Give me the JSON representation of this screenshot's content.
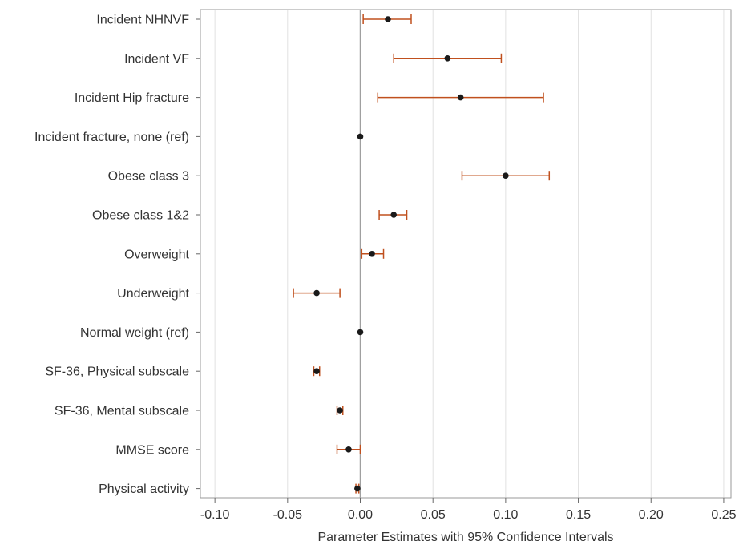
{
  "chart_data": {
    "type": "forest",
    "title": "",
    "xlabel": "Parameter Estimates with 95% Confidence Intervals",
    "ylabel": "",
    "xlim": [
      -0.11,
      0.255
    ],
    "xticks": [
      -0.1,
      -0.05,
      0.0,
      0.05,
      0.1,
      0.15,
      0.2,
      0.25
    ],
    "xtick_labels": [
      "-0.10",
      "-0.05",
      "0.00",
      "0.05",
      "0.10",
      "0.15",
      "0.20",
      "0.25"
    ],
    "reference_line": 0,
    "grid": true,
    "colors": {
      "ci": "#c0501e",
      "point": "#1a1a1a",
      "grid": "#e1e1e1",
      "axis": "#9a9a9a",
      "reference": "#a0a0a0"
    },
    "rows": [
      {
        "label": "Incident NHNVF",
        "estimate": 0.019,
        "lower": 0.002,
        "upper": 0.035
      },
      {
        "label": "Incident VF",
        "estimate": 0.06,
        "lower": 0.023,
        "upper": 0.097
      },
      {
        "label": "Incident Hip fracture",
        "estimate": 0.069,
        "lower": 0.012,
        "upper": 0.126
      },
      {
        "label": "Incident fracture, none (ref)",
        "estimate": 0.0,
        "lower": null,
        "upper": null
      },
      {
        "label": "Obese class 3",
        "estimate": 0.1,
        "lower": 0.07,
        "upper": 0.13
      },
      {
        "label": "Obese class 1&2",
        "estimate": 0.023,
        "lower": 0.013,
        "upper": 0.032
      },
      {
        "label": "Overweight",
        "estimate": 0.008,
        "lower": 0.001,
        "upper": 0.016
      },
      {
        "label": "Underweight",
        "estimate": -0.03,
        "lower": -0.046,
        "upper": -0.014
      },
      {
        "label": "Normal weight (ref)",
        "estimate": 0.0,
        "lower": null,
        "upper": null
      },
      {
        "label": "SF-36, Physical subscale",
        "estimate": -0.03,
        "lower": -0.032,
        "upper": -0.028
      },
      {
        "label": "SF-36, Mental subscale",
        "estimate": -0.014,
        "lower": -0.016,
        "upper": -0.012
      },
      {
        "label": "MMSE score",
        "estimate": -0.008,
        "lower": -0.016,
        "upper": 0.0
      },
      {
        "label": "Physical activity",
        "estimate": -0.002,
        "lower": -0.003,
        "upper": -0.001
      }
    ]
  }
}
